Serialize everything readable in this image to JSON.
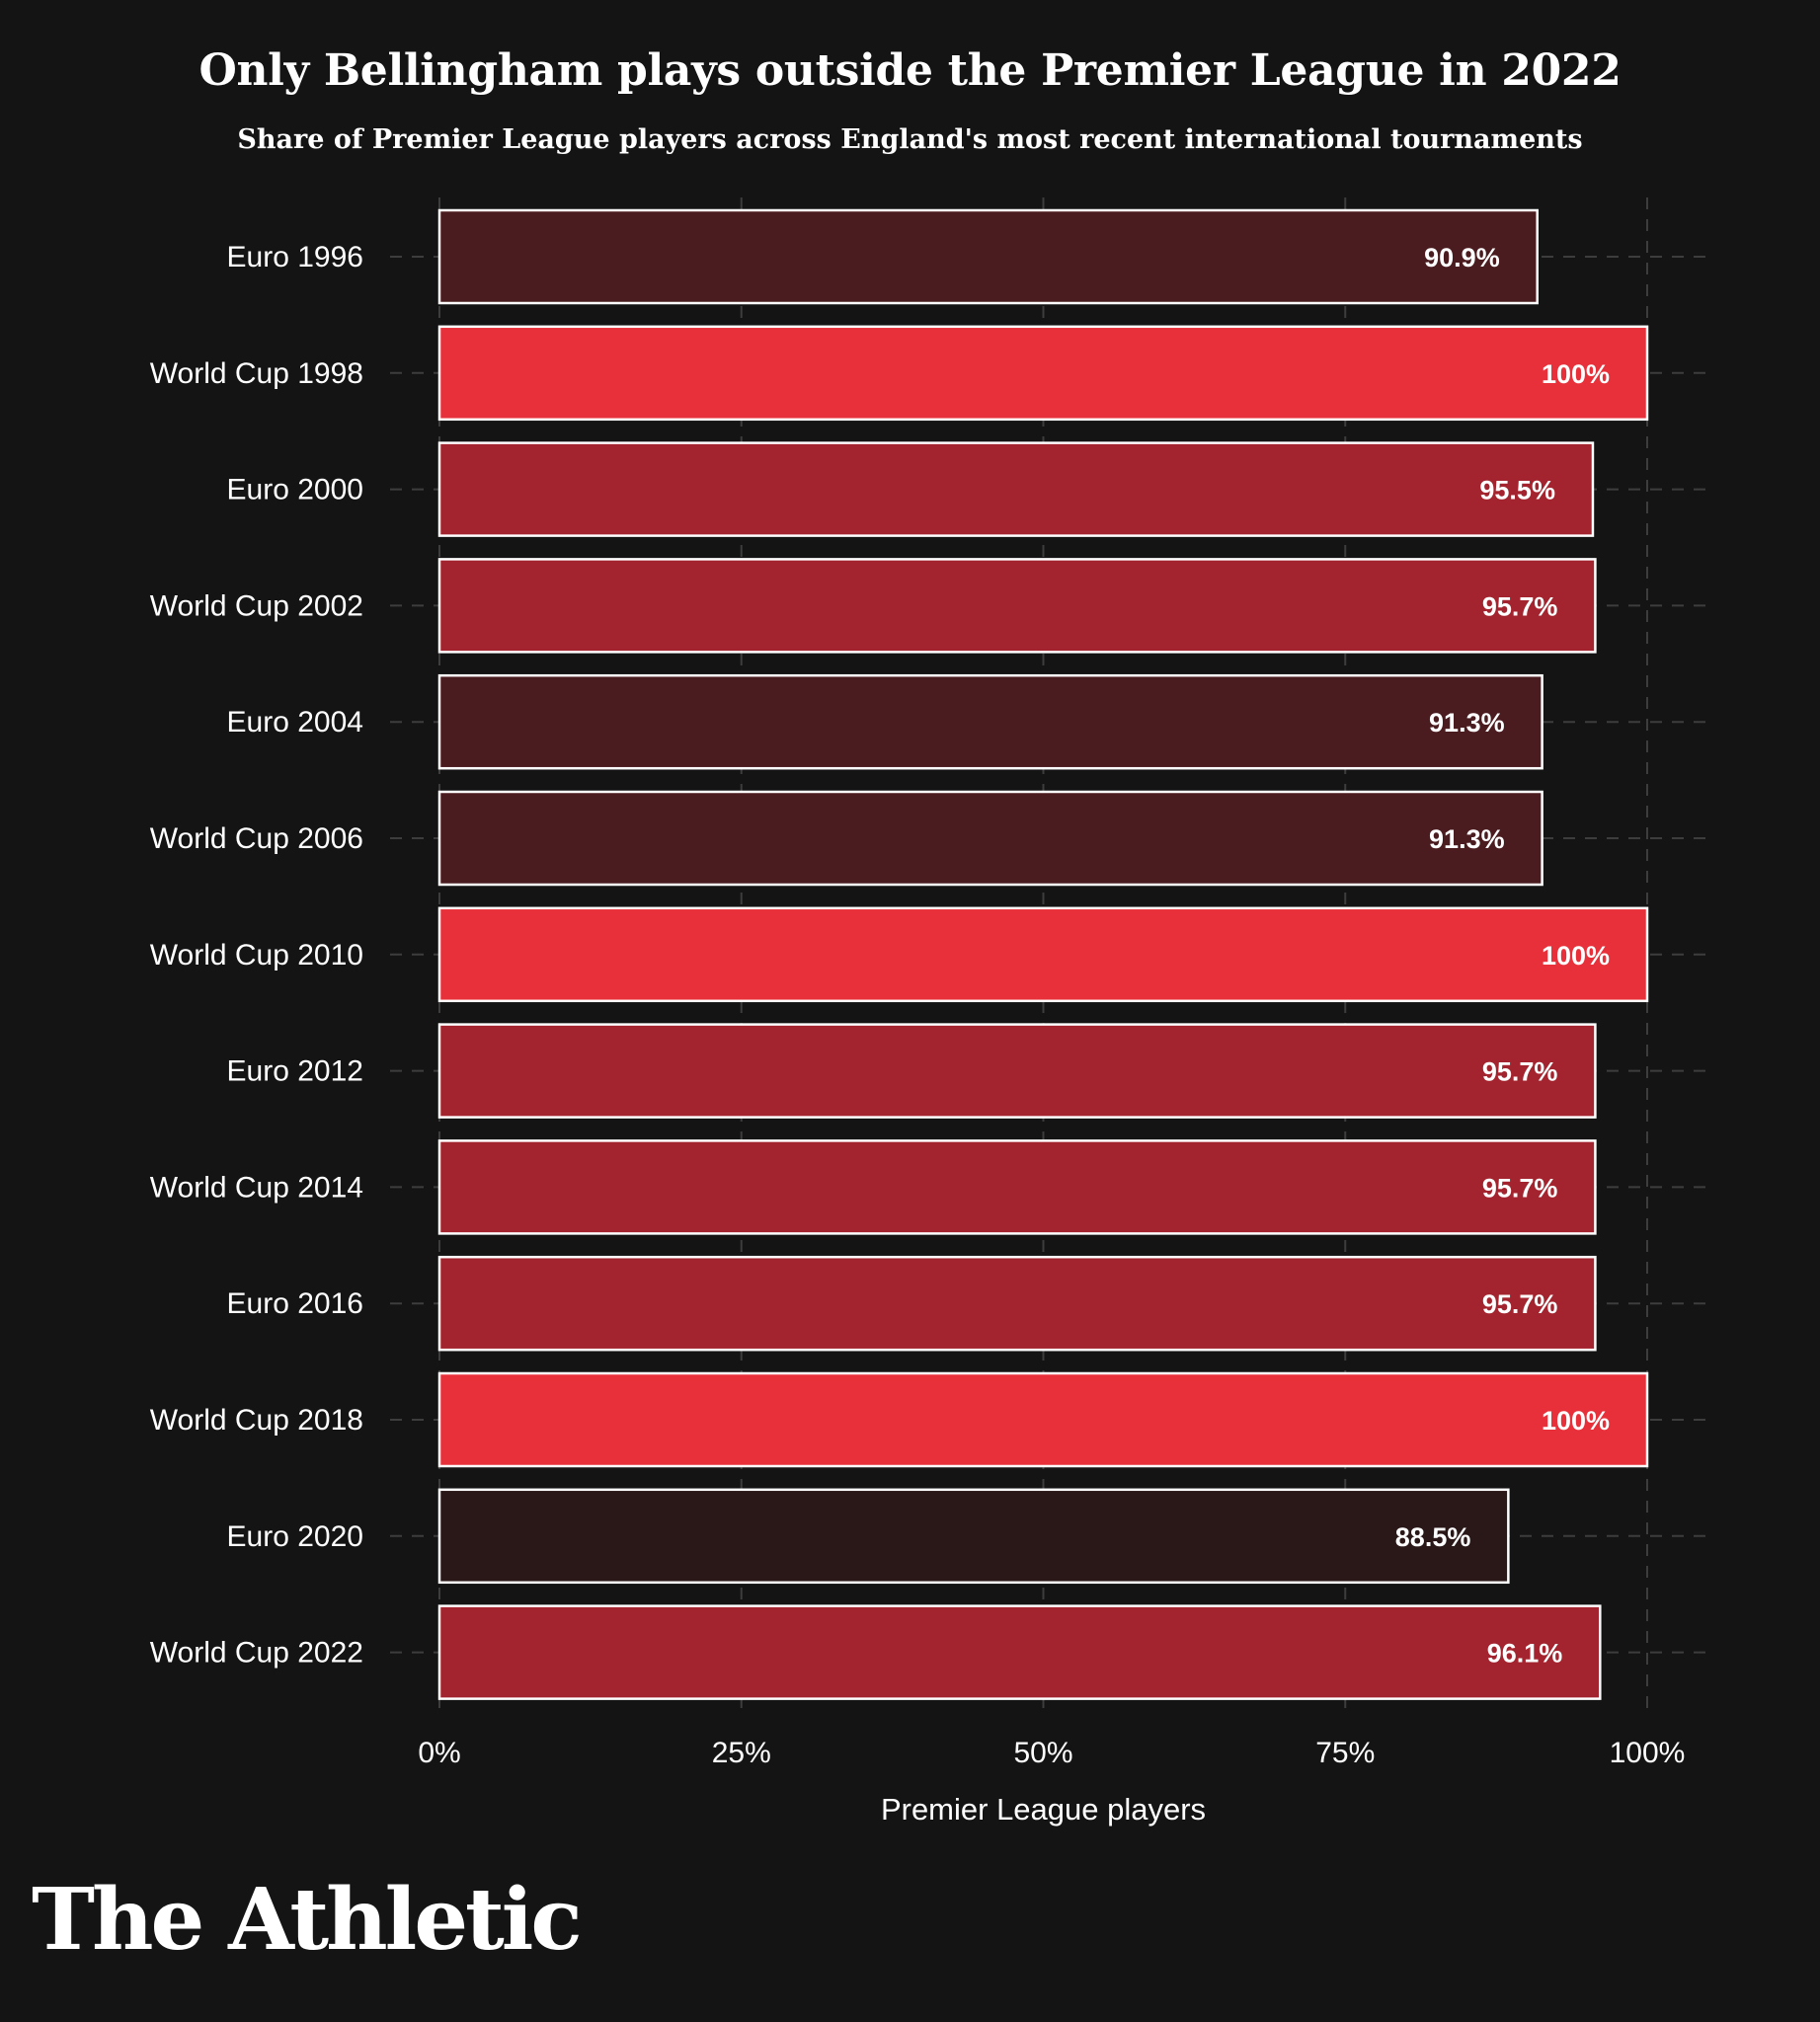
{
  "header": {
    "title": "Only Bellingham plays outside the Premier League in 2022",
    "subtitle": "Share of Premier League players across England's most recent international tournaments"
  },
  "brand": {
    "logo_text": "The Athletic"
  },
  "colors": {
    "background": "#141414",
    "bar_100": "#e8303a",
    "bar_95": "#a3242e",
    "bar_91": "#4a1b1f",
    "bar_88": "#2a1718",
    "bar_outline": "#ffffff",
    "grid": "#3d3d3d"
  },
  "chart_data": {
    "type": "bar",
    "orientation": "horizontal",
    "title": "Only Bellingham plays outside the Premier League in 2022",
    "subtitle": "Share of Premier League players across England's most recent international tournaments",
    "xlabel": "Premier League players",
    "ylabel": "",
    "xlim": [
      0,
      100
    ],
    "grid": true,
    "legend": "none",
    "categories": [
      "Euro 1996",
      "World Cup 1998",
      "Euro 2000",
      "World Cup 2002",
      "Euro 2004",
      "World Cup 2006",
      "World Cup 2010",
      "Euro 2012",
      "World Cup 2014",
      "Euro 2016",
      "World Cup 2018",
      "Euro 2020",
      "World Cup 2022"
    ],
    "values": [
      90.9,
      100,
      95.5,
      95.7,
      91.3,
      91.3,
      100,
      95.7,
      95.7,
      95.7,
      100,
      88.5,
      96.1
    ],
    "value_labels": [
      "90.9%",
      "100%",
      "95.5%",
      "95.7%",
      "91.3%",
      "91.3%",
      "100%",
      "95.7%",
      "95.7%",
      "95.7%",
      "100%",
      "88.5%",
      "96.1%"
    ],
    "x_ticks": [
      0,
      25,
      50,
      75,
      100
    ],
    "x_tick_labels": [
      "0%",
      "25%",
      "50%",
      "75%",
      "100%"
    ]
  }
}
